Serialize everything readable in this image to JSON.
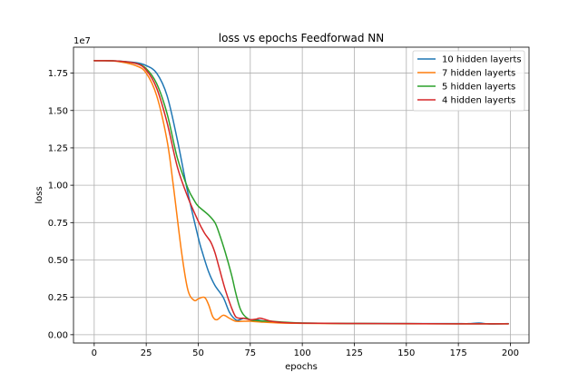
{
  "chart_data": {
    "type": "line",
    "title": "loss vs epochs Feedforwad NN",
    "xlabel": "epochs",
    "ylabel": "loss",
    "y_offset_label": "1e7",
    "xlim": [
      -9.95,
      208.95
    ],
    "ylim": [
      -0.0555,
      1.9235
    ],
    "xticks": [
      0,
      25,
      50,
      75,
      100,
      125,
      150,
      175,
      200
    ],
    "yticks": [
      0.0,
      0.25,
      0.5,
      0.75,
      1.0,
      1.25,
      1.5,
      1.75
    ],
    "ytick_labels": [
      "0.00",
      "0.25",
      "0.50",
      "0.75",
      "1.00",
      "1.25",
      "1.50",
      "1.75"
    ],
    "grid": true,
    "legend_position": "upper right",
    "series": [
      {
        "name": "10 hidden layerts",
        "color": "#1f77b4",
        "x": [
          0,
          10,
          20,
          25,
          30,
          35,
          40,
          45,
          50,
          52,
          55,
          58,
          62,
          65,
          68,
          70,
          72,
          75,
          78,
          80,
          85,
          90,
          100,
          125,
          150,
          175,
          180,
          185,
          190,
          199
        ],
        "y": [
          1.833,
          1.832,
          1.82,
          1.8,
          1.75,
          1.6,
          1.3,
          0.95,
          0.65,
          0.55,
          0.42,
          0.33,
          0.25,
          0.15,
          0.1,
          0.1,
          0.11,
          0.1,
          0.1,
          0.095,
          0.085,
          0.08,
          0.077,
          0.075,
          0.074,
          0.074,
          0.074,
          0.078,
          0.072,
          0.074
        ]
      },
      {
        "name": "7 hidden layerts",
        "color": "#ff7f0e",
        "x": [
          0,
          10,
          20,
          25,
          30,
          35,
          38,
          42,
          45,
          48,
          50,
          53,
          55,
          57,
          59,
          62,
          65,
          68,
          72,
          75,
          80,
          90,
          100,
          125,
          150,
          175,
          199
        ],
        "y": [
          1.833,
          1.83,
          1.8,
          1.75,
          1.6,
          1.3,
          1.0,
          0.55,
          0.3,
          0.23,
          0.24,
          0.25,
          0.2,
          0.12,
          0.1,
          0.13,
          0.11,
          0.09,
          0.09,
          0.09,
          0.085,
          0.078,
          0.076,
          0.074,
          0.073,
          0.073,
          0.073
        ]
      },
      {
        "name": "5 hidden layerts",
        "color": "#2ca02c",
        "x": [
          0,
          10,
          20,
          25,
          30,
          35,
          40,
          45,
          48,
          50,
          55,
          58,
          60,
          63,
          66,
          68,
          70,
          72,
          75,
          78,
          80,
          85,
          90,
          100,
          125,
          150,
          175,
          199
        ],
        "y": [
          1.833,
          1.832,
          1.815,
          1.78,
          1.68,
          1.48,
          1.18,
          0.98,
          0.9,
          0.86,
          0.8,
          0.75,
          0.68,
          0.55,
          0.4,
          0.28,
          0.18,
          0.13,
          0.1,
          0.095,
          0.092,
          0.09,
          0.085,
          0.078,
          0.075,
          0.074,
          0.073,
          0.073
        ]
      },
      {
        "name": "4 hidden layerts",
        "color": "#d62728",
        "x": [
          0,
          10,
          20,
          25,
          30,
          35,
          40,
          45,
          50,
          53,
          56,
          58,
          60,
          63,
          66,
          68,
          70,
          72,
          75,
          78,
          80,
          85,
          90,
          100,
          125,
          150,
          175,
          199
        ],
        "y": [
          1.833,
          1.832,
          1.815,
          1.77,
          1.65,
          1.42,
          1.12,
          0.92,
          0.76,
          0.68,
          0.62,
          0.55,
          0.45,
          0.3,
          0.18,
          0.12,
          0.11,
          0.11,
          0.1,
          0.105,
          0.11,
          0.09,
          0.082,
          0.077,
          0.075,
          0.074,
          0.073,
          0.073
        ]
      }
    ]
  }
}
